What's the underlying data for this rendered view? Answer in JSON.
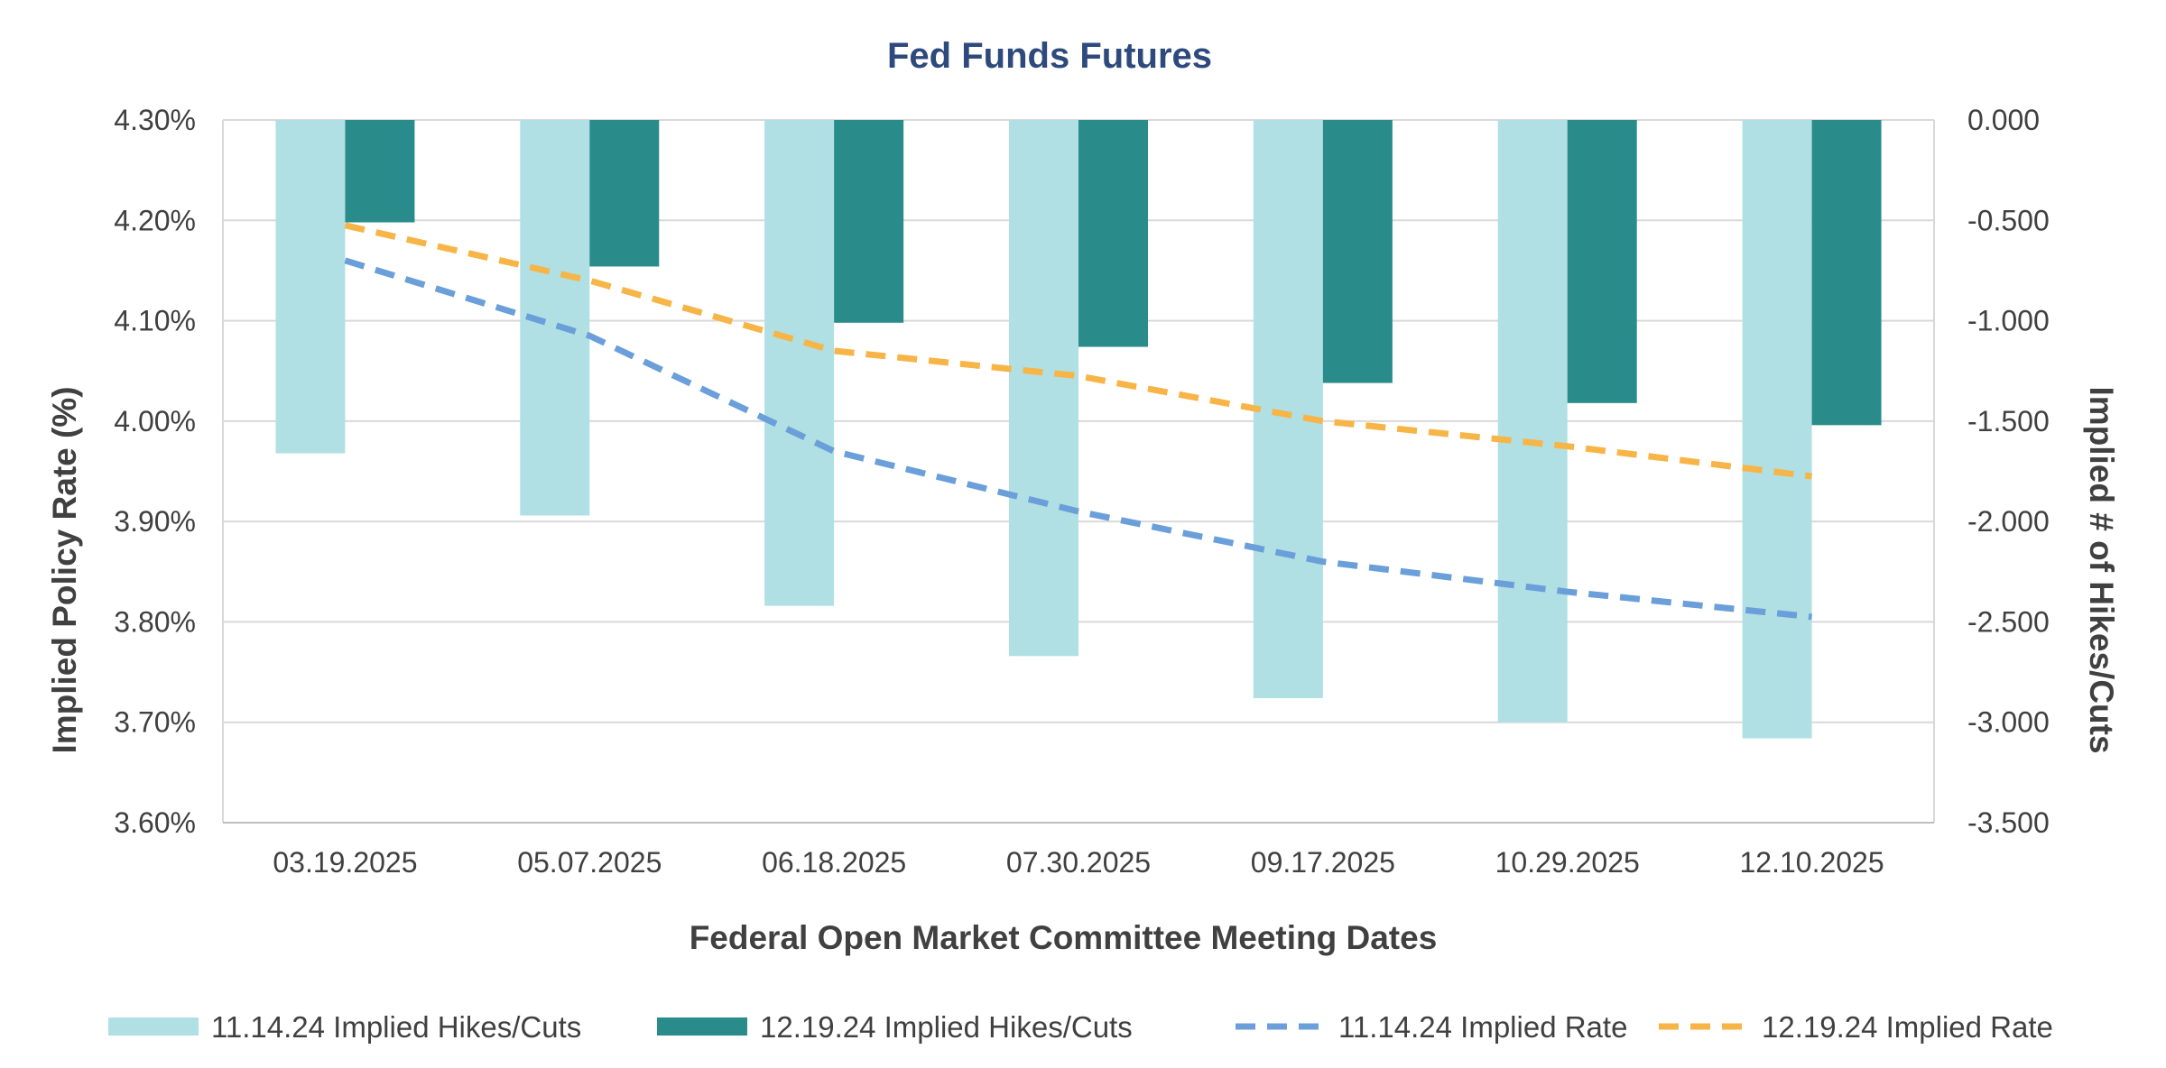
{
  "chart_data": {
    "type": "bar",
    "title": "Fed Funds Futures",
    "xlabel": "Federal Open Market Committee Meeting Dates",
    "ylabel_left": "Implied Policy Rate (%)",
    "ylabel_right": "Implied # of Hikes/Cuts",
    "categories": [
      "03.19.2025",
      "05.07.2025",
      "06.18.2025",
      "07.30.2025",
      "09.17.2025",
      "10.29.2025",
      "12.10.2025"
    ],
    "y_left": {
      "min": 3.6,
      "max": 4.3,
      "ticks": [
        4.3,
        4.2,
        4.1,
        4.0,
        3.9,
        3.8,
        3.7,
        3.6
      ],
      "tick_labels": [
        "4.30%",
        "4.20%",
        "4.10%",
        "4.00%",
        "3.90%",
        "3.80%",
        "3.70%",
        "3.60%"
      ]
    },
    "y_right": {
      "min": -3.5,
      "max": 0.0,
      "ticks": [
        0.0,
        -0.5,
        -1.0,
        -1.5,
        -2.0,
        -2.5,
        -3.0,
        -3.5
      ],
      "tick_labels": [
        "0.000",
        "-0.500",
        "-1.000",
        "-1.500",
        "-2.000",
        "-2.500",
        "-3.000",
        "-3.500"
      ]
    },
    "grid": true,
    "legend_position": "bottom",
    "series": [
      {
        "name": "11.14.24 Implied Hikes/Cuts",
        "kind": "bar",
        "axis": "right",
        "color": "#B0E0E3",
        "values": [
          -1.66,
          -1.97,
          -2.42,
          -2.67,
          -2.88,
          -3.0,
          -3.08
        ]
      },
      {
        "name": "12.19.24 Implied Hikes/Cuts",
        "kind": "bar",
        "axis": "right",
        "color": "#2A8B8B",
        "values": [
          -0.51,
          -0.73,
          -1.01,
          -1.13,
          -1.31,
          -1.41,
          -1.52
        ]
      },
      {
        "name": "11.14.24 Implied Rate",
        "kind": "line",
        "axis": "left",
        "color": "#6A9FDA",
        "dashed": true,
        "values": [
          4.16,
          4.085,
          3.97,
          3.91,
          3.86,
          3.83,
          3.805
        ]
      },
      {
        "name": "12.19.24 Implied Rate",
        "kind": "line",
        "axis": "left",
        "color": "#F7B548",
        "dashed": true,
        "values": [
          4.195,
          4.14,
          4.07,
          4.045,
          4.0,
          3.975,
          3.945
        ]
      }
    ]
  }
}
